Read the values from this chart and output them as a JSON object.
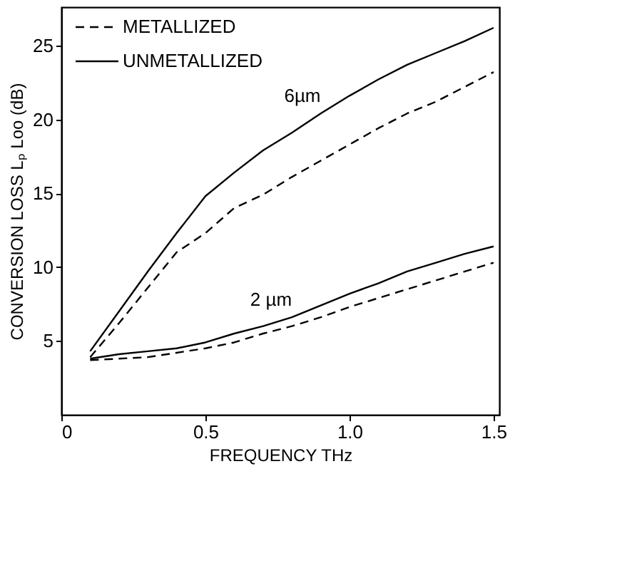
{
  "chart_data": {
    "type": "line",
    "xlabel": "FREQUENCY      THz",
    "ylabel": "CONVERSION LOSS   Lₚ Loo (dB)",
    "xlim": [
      0,
      1.52
    ],
    "ylim": [
      0,
      27.6
    ],
    "xticks": [
      0,
      {
        "value": 0.5,
        "label": "0.5"
      },
      {
        "value": 1.0,
        "label": "1.0"
      },
      {
        "value": 1.5,
        "label": "1.5"
      }
    ],
    "yticks": [
      5,
      10,
      15,
      20,
      25
    ],
    "x": [
      0.1,
      0.2,
      0.3,
      0.4,
      0.5,
      0.6,
      0.7,
      0.8,
      0.9,
      1.0,
      1.1,
      1.2,
      1.3,
      1.4,
      1.5
    ],
    "series": [
      {
        "name": "METALLIZED",
        "color": "#000000",
        "line_style": "dashed",
        "values": [
          3.9,
          6.2,
          8.6,
          11.0,
          12.3,
          14.0,
          14.9,
          16.1,
          17.2,
          18.3,
          19.4,
          20.4,
          21.2,
          22.2,
          23.2
        ]
      },
      {
        "name": "UNMETALLIZED",
        "color": "#000000",
        "line_style": "solid",
        "values": [
          4.3,
          7.0,
          9.7,
          12.3,
          14.8,
          16.4,
          17.9,
          19.1,
          20.4,
          21.6,
          22.7,
          23.7,
          24.5,
          25.3,
          26.2
        ]
      },
      {
        "color": "#000000",
        "line_style": "dashed",
        "values": [
          3.7,
          3.8,
          3.9,
          4.2,
          4.5,
          4.9,
          5.5,
          6.0,
          6.6,
          7.3,
          7.9,
          8.5,
          9.1,
          9.7,
          10.3
        ]
      },
      {
        "color": "#000000",
        "line_style": "solid",
        "values": [
          3.8,
          4.1,
          4.3,
          4.5,
          4.9,
          5.5,
          6.0,
          6.6,
          7.4,
          8.2,
          8.9,
          9.7,
          10.3,
          10.9,
          11.4
        ]
      }
    ],
    "annotations": [
      {
        "text": "6µm",
        "x": 0.9,
        "y": 20.4
      },
      {
        "text": "2 µm",
        "x": 0.8,
        "y": 6.6
      }
    ],
    "grid": false,
    "legend": "top left"
  }
}
